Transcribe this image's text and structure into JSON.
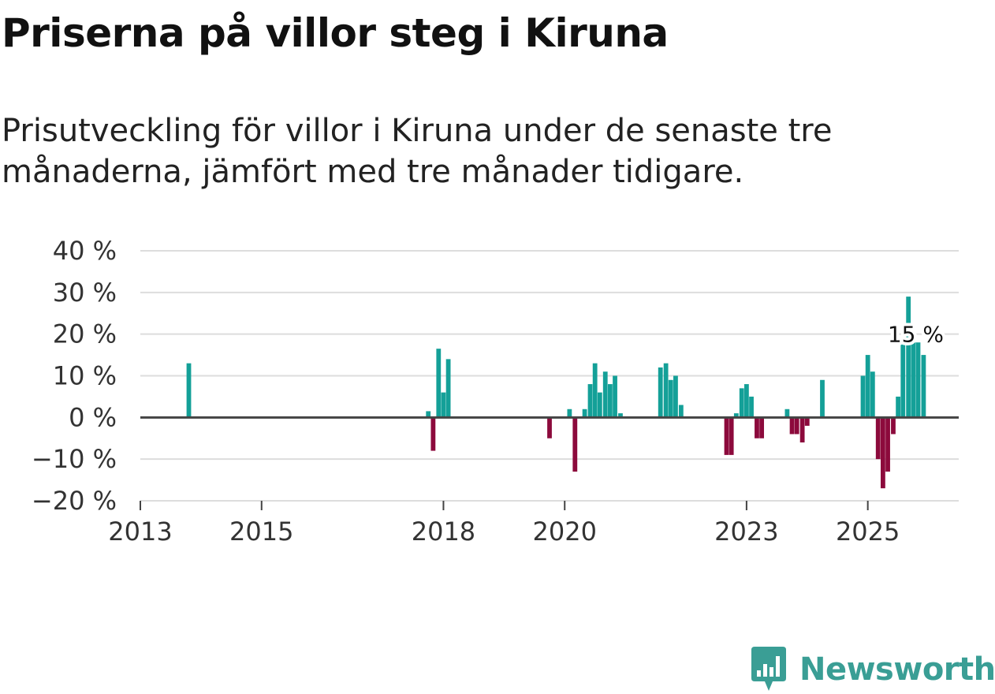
{
  "header": {
    "title": "Priserna på villor steg i Kiruna",
    "subtitle": "Prisutveckling för villor i Kiruna under de senaste tre månaderna, jämfört med tre månader tidigare."
  },
  "brand": {
    "name": "Newsworthy",
    "color": "#3a9e95",
    "logo_icon": "newsworthy-logo-icon"
  },
  "chart_data": {
    "type": "bar",
    "title": "",
    "xlabel": "",
    "ylabel": "",
    "ylim": [
      -20,
      40
    ],
    "xlim": [
      2013.0,
      2026.5
    ],
    "y_ticks": [
      -20,
      -10,
      0,
      10,
      20,
      30,
      40
    ],
    "y_tick_labels": [
      "−20 %",
      "−10 %",
      "0 %",
      "10 %",
      "20 %",
      "30 %",
      "40 %"
    ],
    "x_ticks": [
      2013,
      2015,
      2018,
      2020,
      2023,
      2025
    ],
    "x_tick_labels": [
      "2013",
      "2015",
      "2018",
      "2020",
      "2023",
      "2025"
    ],
    "grid": true,
    "colors": {
      "positive": "#14a098",
      "negative": "#8c0a3c",
      "zero_line": "#444444",
      "grid": "#dddddd"
    },
    "annotation": {
      "text": "15 %",
      "x": 2025.79,
      "y": 15
    },
    "series": [
      {
        "x": [
          2013.8,
          2017.75,
          2017.83,
          2017.92,
          2018.0,
          2018.08,
          2019.75,
          2020.08,
          2020.17,
          2020.33,
          2020.42,
          2020.5,
          2020.58,
          2020.67,
          2020.75,
          2020.83,
          2020.92,
          2021.58,
          2021.67,
          2021.75,
          2021.83,
          2021.92,
          2022.67,
          2022.75,
          2022.83,
          2022.92,
          2023.0,
          2023.08,
          2023.17,
          2023.25,
          2023.67,
          2023.75,
          2023.83,
          2023.92,
          2024.0,
          2024.25,
          2024.92,
          2025.0,
          2025.08,
          2025.17,
          2025.25,
          2025.33,
          2025.42,
          2025.5,
          2025.58,
          2025.67,
          2025.75,
          2025.83,
          2025.92
        ],
        "values": [
          13,
          1.5,
          -8,
          16.5,
          6,
          14,
          -5,
          2,
          -13,
          2,
          8,
          13,
          6,
          11,
          8,
          10,
          1,
          12,
          13,
          9,
          10,
          3,
          -9,
          -9,
          1,
          7,
          8,
          5,
          -5,
          -5,
          2,
          -4,
          -4,
          -6,
          -2,
          9,
          10,
          15,
          11,
          -10,
          -17,
          -13,
          -4,
          5,
          18,
          29,
          18,
          18,
          15
        ]
      }
    ]
  }
}
